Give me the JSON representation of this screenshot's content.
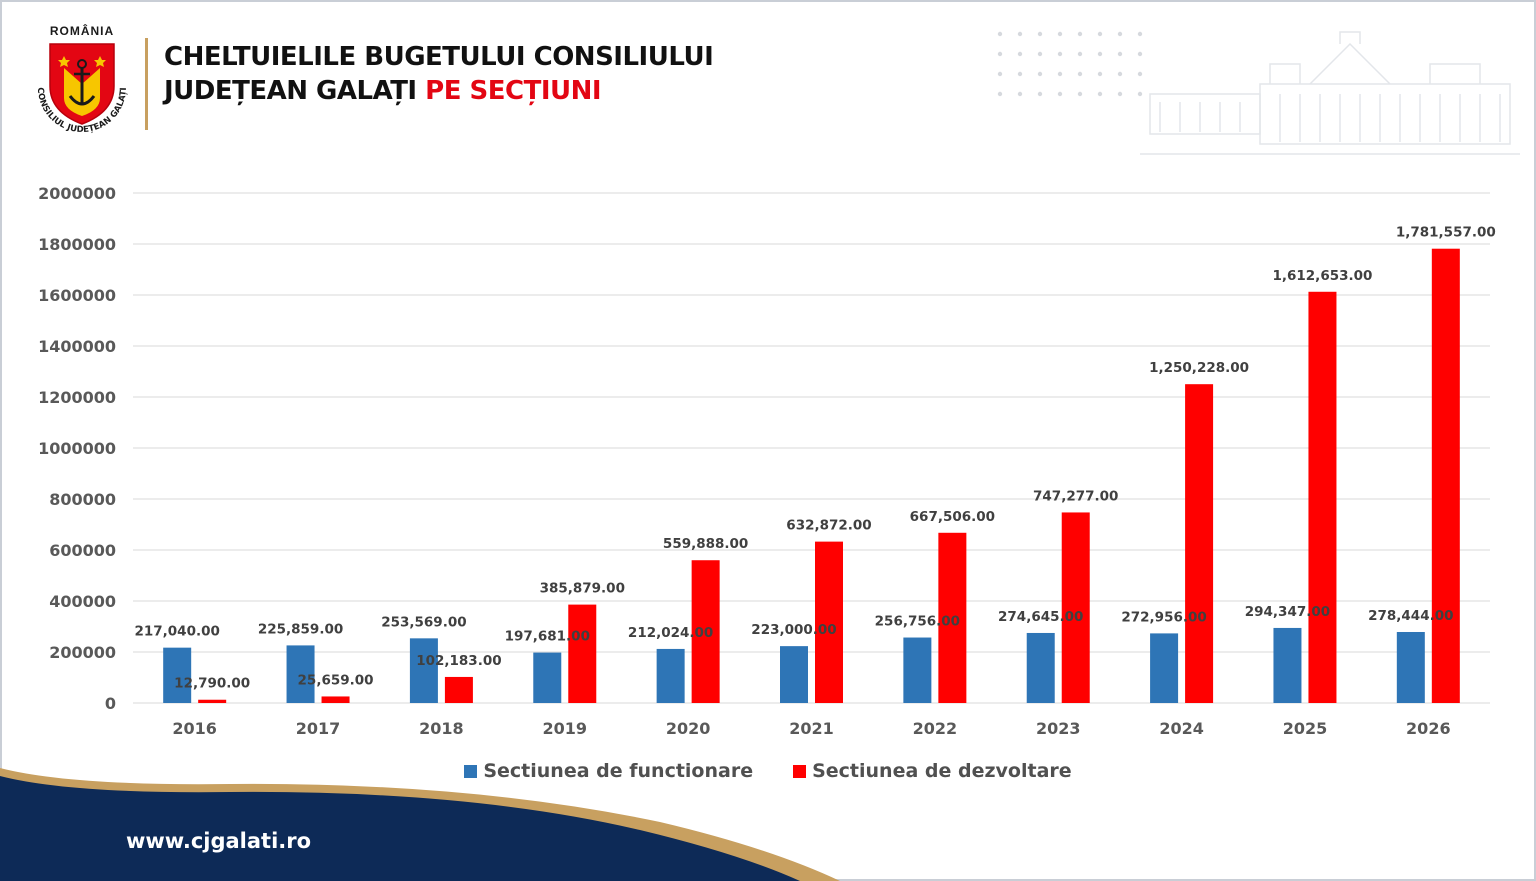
{
  "header": {
    "crest_top": "ROMÂNIA",
    "crest_ring": "CONSILIUL JUDEȚEAN GALAȚI",
    "title_line1": "CHELTUIELILE BUGETULUI CONSILIULUI",
    "title_line2_black": "JUDEȚEAN GALAȚI",
    "title_line2_red": "PE SECȚIUNI"
  },
  "footer": {
    "website": "www.cjgalati.ro"
  },
  "colors": {
    "blue": "#2e75b6",
    "red": "#ff0000",
    "navy": "#0d2a57",
    "gold": "#c8a060",
    "title_red": "#e30613"
  },
  "chart_data": {
    "type": "bar",
    "categories": [
      "2016",
      "2017",
      "2018",
      "2019",
      "2020",
      "2021",
      "2022",
      "2023",
      "2024",
      "2025",
      "2026"
    ],
    "series": [
      {
        "name": "Sectiunea de functionare",
        "color": "#2e75b6",
        "values": [
          217040,
          225859,
          253569,
          197681,
          212024,
          223000,
          256756,
          274645,
          272956,
          294347,
          278444
        ],
        "labels": [
          "217,040.00",
          "225,859.00",
          "253,569.00",
          "197,681.00",
          "212,024.00",
          "223,000.00",
          "256,756.00",
          "274,645.00",
          "272,956.00",
          "294,347.00",
          "278,444.00"
        ]
      },
      {
        "name": "Sectiunea de dezvoltare",
        "color": "#ff0000",
        "values": [
          12790,
          25659,
          102183,
          385879,
          559888,
          632872,
          667506,
          747277,
          1250228,
          1612653,
          1781557
        ],
        "labels": [
          "12,790.00",
          "25,659.00",
          "102,183.00",
          "385,879.00",
          "559,888.00",
          "632,872.00",
          "667,506.00",
          "747,277.00",
          "1,250,228.00",
          "1,612,653.00",
          "1,781,557.00"
        ]
      }
    ],
    "yticks": [
      "0",
      "200000",
      "400000",
      "600000",
      "800000",
      "1000000",
      "1200000",
      "1400000",
      "1600000",
      "1800000",
      "2000000"
    ],
    "ylim": [
      0,
      2000000
    ],
    "grid": true,
    "legend_position": "bottom"
  }
}
